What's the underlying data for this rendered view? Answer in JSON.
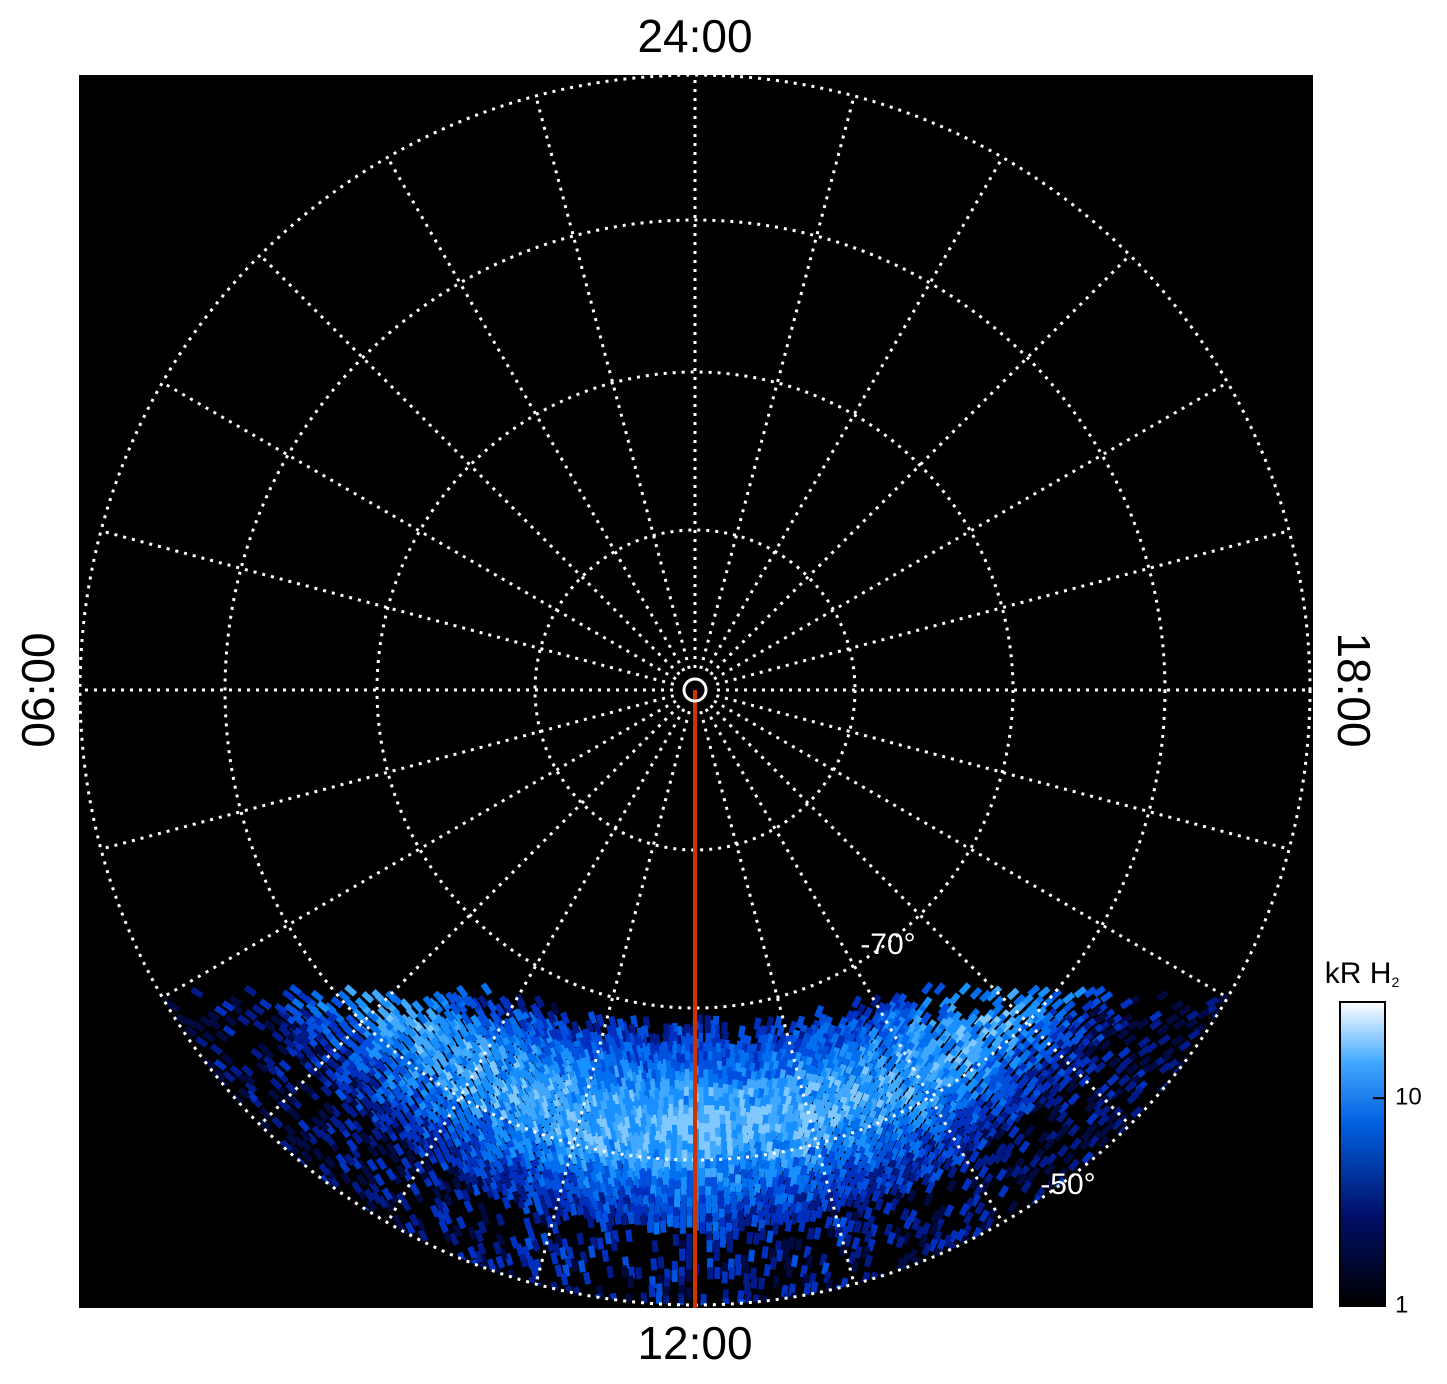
{
  "labels": {
    "top": "24:00",
    "bottom": "12:00",
    "left": "06:00",
    "right": "18:00"
  },
  "latitudes": [
    "-70°",
    "-50°"
  ],
  "colorbar": {
    "label": "kR H",
    "label_sub": "2",
    "scale": "log",
    "lim": [
      1,
      29
    ],
    "ticks": [
      1,
      10
    ]
  }
}
